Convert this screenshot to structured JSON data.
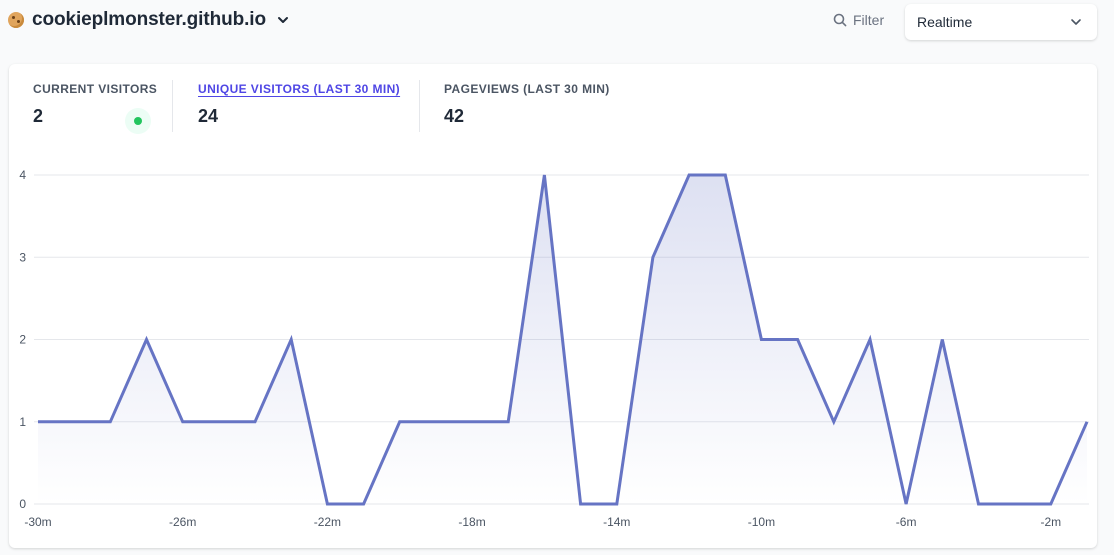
{
  "header": {
    "site_name": "cookieplmonster.github.io",
    "filter_label": "Filter",
    "period_label": "Realtime"
  },
  "stats": {
    "current_visitors": {
      "label": "CURRENT VISITORS",
      "value": "2"
    },
    "unique_visitors": {
      "label": "UNIQUE VISITORS (LAST 30 MIN)",
      "value": "24"
    },
    "pageviews": {
      "label": "PAGEVIEWS (LAST 30 MIN)",
      "value": "42"
    }
  },
  "colors": {
    "line": "#6674c4",
    "live": "#22c55e",
    "accent": "#4f46e5"
  },
  "chart_data": {
    "type": "area",
    "x": [
      "-30m",
      "-29m",
      "-28m",
      "-27m",
      "-26m",
      "-25m",
      "-24m",
      "-23m",
      "-22m",
      "-21m",
      "-20m",
      "-19m",
      "-18m",
      "-17m",
      "-16m",
      "-15m",
      "-14m",
      "-13m",
      "-12m",
      "-11m",
      "-10m",
      "-9m",
      "-8m",
      "-7m",
      "-6m",
      "-5m",
      "-4m",
      "-3m",
      "-2m",
      "-1m"
    ],
    "values": [
      1,
      1,
      1,
      2,
      1,
      1,
      1,
      2,
      0,
      0,
      1,
      1,
      1,
      1,
      4,
      0,
      0,
      3,
      4,
      4,
      2,
      2,
      1,
      2,
      0,
      2,
      0,
      0,
      0,
      1
    ],
    "x_tick_labels": [
      "-30m",
      "-26m",
      "-22m",
      "-18m",
      "-14m",
      "-10m",
      "-6m",
      "-2m"
    ],
    "y_ticks": [
      0,
      1,
      2,
      3,
      4
    ],
    "ylim": [
      0,
      4
    ],
    "grid": true
  }
}
